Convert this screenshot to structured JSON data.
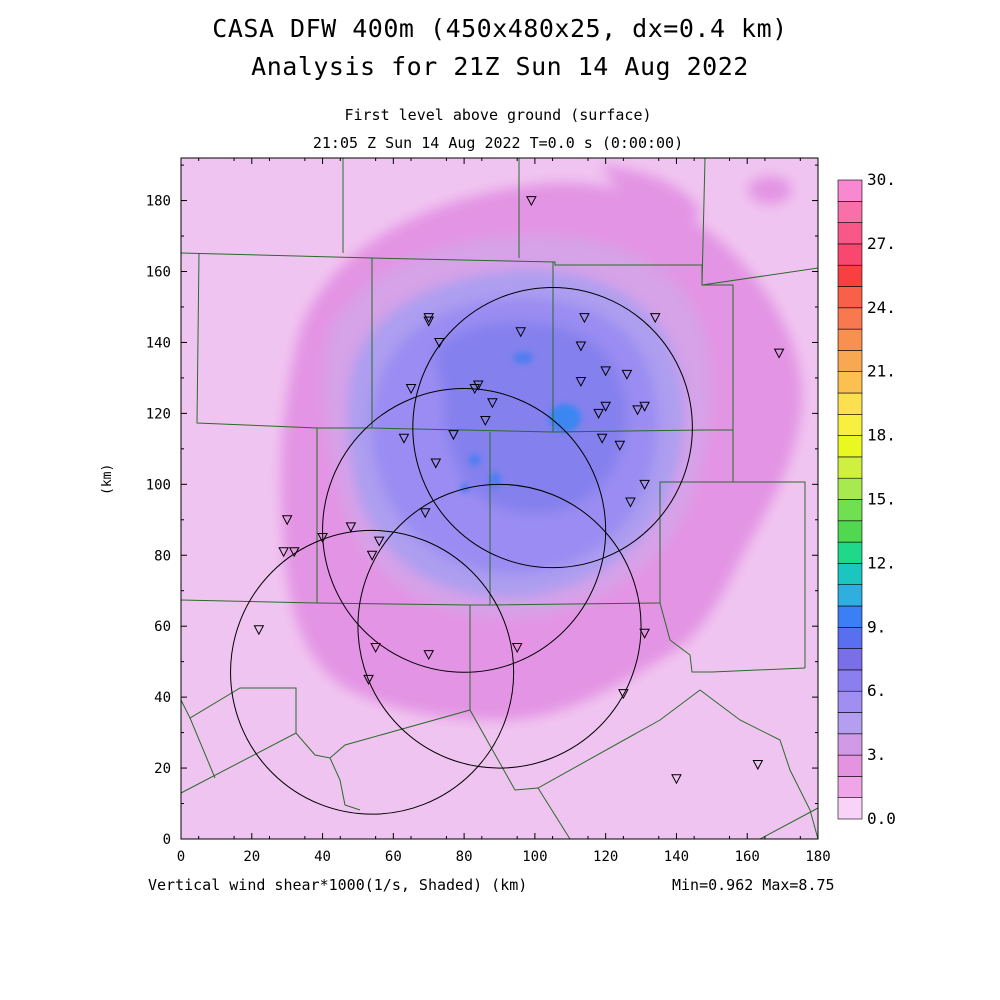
{
  "titles": {
    "line1": "CASA DFW 400m (450x480x25, dx=0.4 km)",
    "line2": "Analysis for 21Z Sun 14 Aug 2022",
    "level": "First level above ground (surface)",
    "time": "21:05 Z Sun 14 Aug 2022   T=0.0 s (0:00:00)"
  },
  "axes": {
    "xlabel": "(km)",
    "ylabel": "(km)",
    "x_ticks": [
      "0",
      "20",
      "40",
      "60",
      "80",
      "100",
      "120",
      "140",
      "160",
      "180"
    ],
    "y_ticks": [
      "0",
      "20",
      "40",
      "60",
      "80",
      "100",
      "120",
      "140",
      "160",
      "180"
    ],
    "xlim": [
      0,
      180
    ],
    "ylim": [
      0,
      192
    ]
  },
  "field": {
    "label": "Vertical wind shear*1000(1/s, Shaded)",
    "min_max": "Min=0.962 Max=8.75"
  },
  "colorbar": {
    "labels": [
      "0.0",
      "3.",
      "6.",
      "9.",
      "12.",
      "15.",
      "18.",
      "21.",
      "24.",
      "27.",
      "30."
    ],
    "colors": [
      "#f9d3f7",
      "#f0a5e8",
      "#e493e0",
      "#d29ae6",
      "#b39ef0",
      "#a08ff0",
      "#8b7ff0",
      "#7b6fe8",
      "#5a6ff0",
      "#3a7ff5",
      "#2faee0",
      "#1cc6c0",
      "#20d88a",
      "#50d850",
      "#70e050",
      "#a8e850",
      "#d0f040",
      "#e8f820",
      "#f8f040",
      "#fce050",
      "#fcc050",
      "#f8a850",
      "#f89050",
      "#f87850",
      "#f86048",
      "#f84040",
      "#f84870",
      "#f85888",
      "#f870a8",
      "#f888d0"
    ]
  },
  "shading_colors": {
    "base": "#f0c4f0",
    "c2": "#e394e4",
    "c3": "#d6a2e8",
    "c4": "#ad9ef0",
    "c5": "#9a8cf2",
    "c6": "#8480ee",
    "c7": "#4f7ef0",
    "c8": "#3a86f0"
  },
  "radar_rings": [
    {
      "cx": 105,
      "cy": 116,
      "r": 39.5
    },
    {
      "cx": 80,
      "cy": 87,
      "r": 40
    },
    {
      "cx": 90,
      "cy": 60,
      "r": 40
    },
    {
      "cx": 54,
      "cy": 47,
      "r": 40
    }
  ],
  "stations": [
    [
      99,
      180
    ],
    [
      70,
      147
    ],
    [
      70,
      146
    ],
    [
      73,
      140
    ],
    [
      96,
      143
    ],
    [
      114,
      147
    ],
    [
      134,
      147
    ],
    [
      113,
      139
    ],
    [
      169,
      137
    ],
    [
      65,
      127
    ],
    [
      84,
      128
    ],
    [
      83,
      127
    ],
    [
      88,
      123
    ],
    [
      113,
      129
    ],
    [
      120,
      132
    ],
    [
      126,
      131
    ],
    [
      86,
      118
    ],
    [
      120,
      122
    ],
    [
      118,
      120
    ],
    [
      131,
      122
    ],
    [
      129,
      121
    ],
    [
      63,
      113
    ],
    [
      77,
      114
    ],
    [
      119,
      113
    ],
    [
      124,
      111
    ],
    [
      72,
      106
    ],
    [
      131,
      100
    ],
    [
      127,
      95
    ],
    [
      30,
      90
    ],
    [
      48,
      88
    ],
    [
      69,
      92
    ],
    [
      56,
      84
    ],
    [
      54,
      80
    ],
    [
      29,
      81
    ],
    [
      32,
      81
    ],
    [
      40,
      85
    ],
    [
      22,
      59
    ],
    [
      131,
      58
    ],
    [
      55,
      54
    ],
    [
      70,
      52
    ],
    [
      95,
      54
    ],
    [
      53,
      45
    ],
    [
      125,
      41
    ],
    [
      140,
      17
    ],
    [
      163,
      21
    ]
  ]
}
